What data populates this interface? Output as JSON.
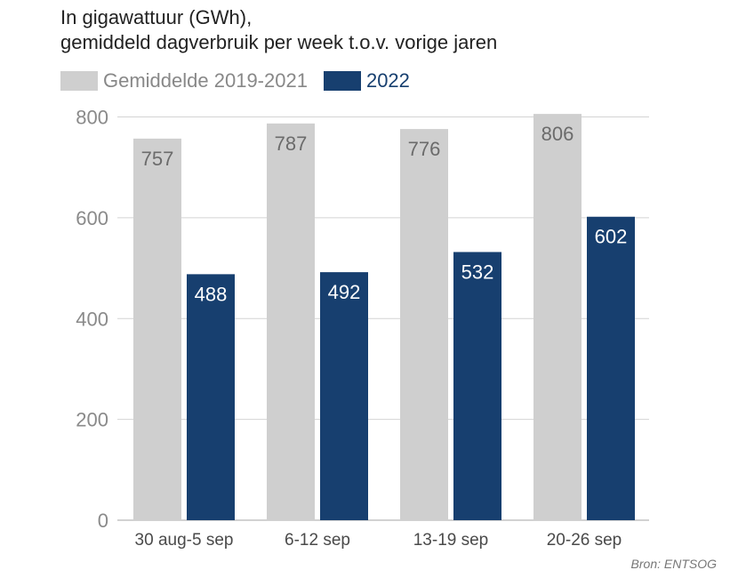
{
  "title": {
    "line1": "In gigawattuur (GWh),",
    "line2": "gemiddeld dagverbruik per week t.o.v. vorige jaren"
  },
  "legend": [
    {
      "label": "Gemiddelde 2019-2021",
      "color": "#cfcfcf",
      "text_color": "#888888"
    },
    {
      "label": "2022",
      "color": "#173f6f",
      "text_color": "#173f6f"
    }
  ],
  "source": "Bron: ENTSOG",
  "chart_data": {
    "type": "bar",
    "categories": [
      "30 aug-5 sep",
      "6-12 sep",
      "13-19 sep",
      "20-26 sep"
    ],
    "series": [
      {
        "name": "Gemiddelde 2019-2021",
        "values": [
          757,
          787,
          776,
          806
        ],
        "color": "#cfcfcf",
        "label_color": "#6b6b6b"
      },
      {
        "name": "2022",
        "values": [
          488,
          492,
          532,
          602
        ],
        "color": "#173f6f",
        "label_color": "#ffffff"
      }
    ],
    "yticks": [
      0,
      200,
      400,
      600,
      800
    ],
    "ylim": [
      0,
      810
    ],
    "grid": true,
    "legend_position": "top-left"
  }
}
